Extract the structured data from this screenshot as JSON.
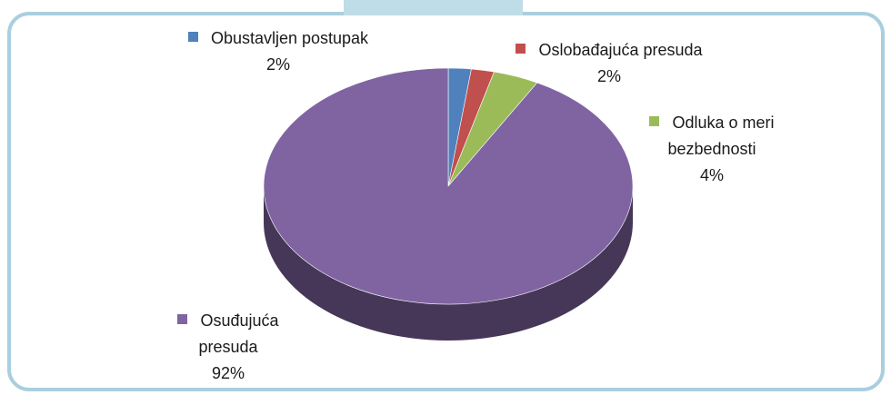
{
  "chart_data": {
    "type": "pie",
    "categories": [
      "Obustavljen postupak",
      "Oslobađajuća presuda",
      "Odluka o meri bezbednosti",
      "Osuđujuća presuda"
    ],
    "values": [
      2,
      2,
      4,
      92
    ],
    "value_labels": [
      "2%",
      "2%",
      "4%",
      "92%"
    ],
    "colors": [
      "#4f81bd",
      "#c0504d",
      "#9bbb59",
      "#8064a2"
    ],
    "three_d": true
  }
}
